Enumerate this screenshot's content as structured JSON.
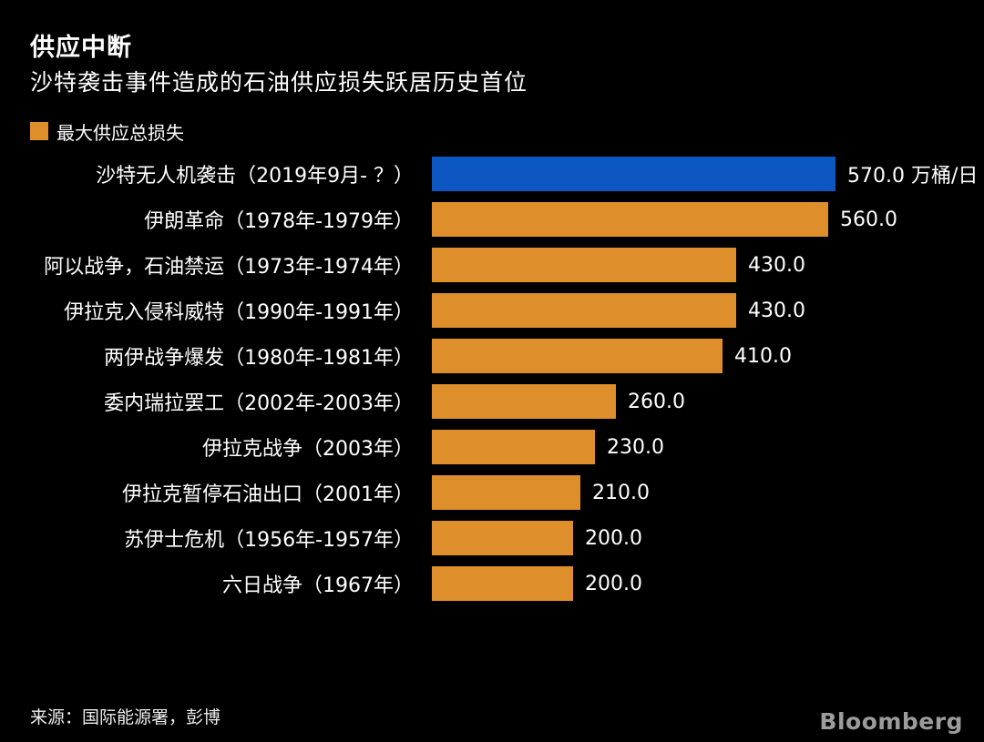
{
  "header": {
    "title": "供应中断",
    "subtitle": "沙特袭击事件造成的石油供应损失跃居历史首位"
  },
  "legend": {
    "label": "最大供应总损失",
    "swatch_color": "#de8e2a"
  },
  "chart_data": {
    "type": "bar",
    "orientation": "horizontal",
    "title": "供应中断",
    "subtitle": "沙特袭击事件造成的石油供应损失跃居历史首位",
    "legend_entries": [
      "最大供应总损失"
    ],
    "unit": "万桶/日",
    "xlim": [
      0,
      570
    ],
    "grid": false,
    "categories": [
      "沙特无人机袭击（2019年9月- ？）",
      "伊朗革命（1978年-1979年）",
      "阿以战争，石油禁运（1973年-1974年）",
      "伊拉克入侵科威特（1990年-1991年）",
      "两伊战争爆发（1980年-1981年）",
      "委内瑞拉罢工（2002年-2003年）",
      "伊拉克战争（2003年）",
      "伊拉克暂停石油出口（2001年）",
      "苏伊士危机（1956年-1957年）",
      "六日战争（1967年）"
    ],
    "values": [
      570.0,
      560.0,
      430.0,
      430.0,
      410.0,
      260.0,
      230.0,
      210.0,
      200.0,
      200.0
    ],
    "value_labels": [
      "570.0 万桶/日",
      "560.0",
      "430.0",
      "430.0",
      "410.0",
      "260.0",
      "230.0",
      "210.0",
      "200.0",
      "200.0"
    ],
    "highlight_index": 0
  },
  "colors": {
    "background": "#000000",
    "bar_orange": "#de8e2a",
    "bar_blue_highlight": "#0d57c2",
    "text": "#ffffff",
    "brand_gray": "#9c9c9c"
  },
  "footer": {
    "source": "来源：国际能源署，彭博",
    "brand": "Bloomberg"
  }
}
